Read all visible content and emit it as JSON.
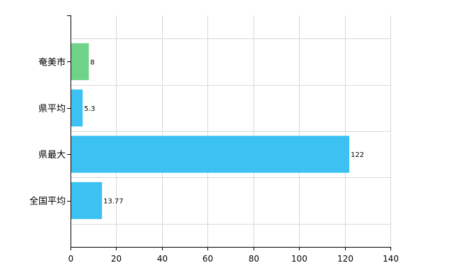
{
  "chart_data": {
    "type": "bar",
    "orientation": "horizontal",
    "categories": [
      "奄美市",
      "県平均",
      "県最大",
      "全国平均"
    ],
    "values": [
      8,
      5.3,
      122,
      13.77
    ],
    "data_labels": [
      "8",
      "5.3",
      "122",
      "13.77"
    ],
    "bar_colors": [
      "#6fd48a",
      "#3cc2f2",
      "#3cc2f2",
      "#3cc2f2"
    ],
    "title": "",
    "xlabel": "",
    "ylabel": "",
    "xlim": [
      0,
      140
    ],
    "x_ticks": [
      0,
      20,
      40,
      60,
      80,
      100,
      120,
      140
    ],
    "grid": true,
    "legend": "none"
  }
}
